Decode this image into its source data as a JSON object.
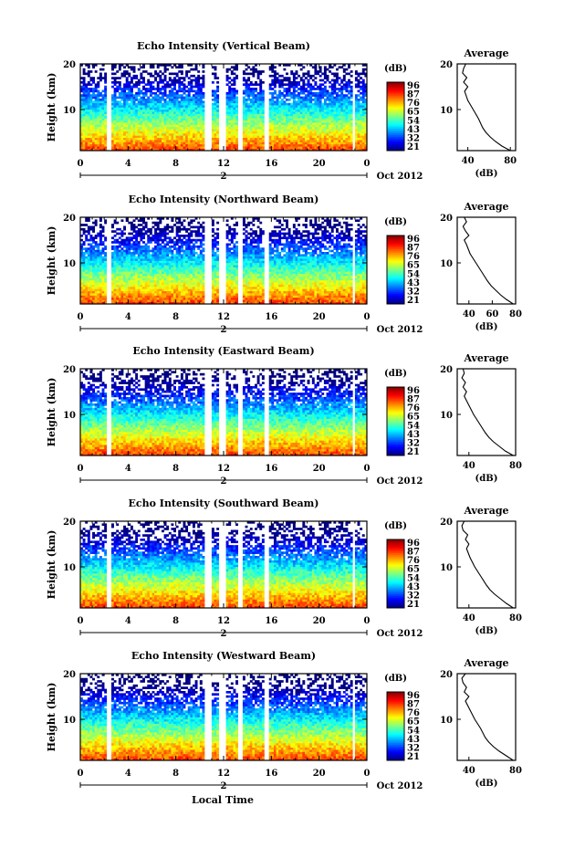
{
  "figure": {
    "xlabel": "Local Time",
    "date_label": "Oct 2012",
    "day_label": "2"
  },
  "chart_data": [
    {
      "type": "heatmap",
      "title": "Echo Intensity (Vertical Beam)",
      "ylabel": "Height (km)",
      "xlabel": "Local Time",
      "x_ticks": [
        "0",
        "4",
        "8",
        "12",
        "16",
        "20",
        "0"
      ],
      "y_ticks": [
        "10",
        "20"
      ],
      "xlim": [
        0,
        24
      ],
      "ylim": [
        1,
        20
      ],
      "colorbar": {
        "title": "(dB)",
        "ticks": [
          "96",
          "87",
          "76",
          "65",
          "54",
          "43",
          "32",
          "21"
        ],
        "range": [
          21,
          96
        ]
      },
      "data_gaps_hours": [
        [
          2.2,
          2.6
        ],
        [
          10.4,
          10.9
        ],
        [
          11.7,
          12.1
        ],
        [
          13.3,
          13.6
        ],
        [
          15.5,
          15.7
        ],
        [
          22.8,
          23.0
        ]
      ],
      "average_profile": {
        "title": "Average",
        "xlabel": "(dB)",
        "x_ticks": [
          "40",
          "80"
        ],
        "y_ticks": [
          "10",
          "20"
        ],
        "xlim": [
          30,
          85
        ],
        "height_km": [
          1,
          2,
          3,
          4,
          5,
          6,
          8,
          10,
          12,
          14,
          15,
          16,
          17,
          18,
          19,
          20
        ],
        "value_db": [
          80,
          72,
          66,
          61,
          57,
          54,
          50,
          45,
          40,
          37,
          40,
          36,
          39,
          35,
          36,
          38
        ]
      }
    },
    {
      "type": "heatmap",
      "title": "Echo Intensity (Northward Beam)",
      "ylabel": "Height (km)",
      "xlabel": "Local Time",
      "x_ticks": [
        "0",
        "4",
        "8",
        "12",
        "16",
        "20",
        "0"
      ],
      "y_ticks": [
        "10",
        "20"
      ],
      "xlim": [
        0,
        24
      ],
      "ylim": [
        1,
        20
      ],
      "colorbar": {
        "title": "(dB)",
        "ticks": [
          "96",
          "87",
          "76",
          "65",
          "54",
          "43",
          "32",
          "21"
        ],
        "range": [
          21,
          96
        ]
      },
      "data_gaps_hours": [
        [
          2.2,
          2.6
        ],
        [
          10.4,
          10.9
        ],
        [
          11.7,
          12.1
        ],
        [
          13.3,
          13.6
        ],
        [
          15.5,
          15.7
        ],
        [
          22.8,
          23.0
        ]
      ],
      "average_profile": {
        "title": "Average",
        "xlabel": "(dB)",
        "x_ticks": [
          "40",
          "60",
          "80"
        ],
        "y_ticks": [
          "10",
          "20"
        ],
        "xlim": [
          30,
          80
        ],
        "height_km": [
          1,
          2,
          3,
          4,
          5,
          6,
          8,
          10,
          12,
          14,
          15,
          16,
          17,
          18,
          19,
          20
        ],
        "value_db": [
          78,
          72,
          67,
          63,
          59,
          56,
          51,
          46,
          41,
          38,
          36,
          40,
          37,
          35,
          38,
          36
        ]
      }
    },
    {
      "type": "heatmap",
      "title": "Echo Intensity (Eastward Beam)",
      "ylabel": "Height (km)",
      "xlabel": "Local Time",
      "x_ticks": [
        "0",
        "4",
        "8",
        "12",
        "16",
        "20",
        "0"
      ],
      "y_ticks": [
        "10",
        "20"
      ],
      "xlim": [
        0,
        24
      ],
      "ylim": [
        1,
        20
      ],
      "colorbar": {
        "title": "(dB)",
        "ticks": [
          "96",
          "87",
          "76",
          "65",
          "54",
          "43",
          "32",
          "21"
        ],
        "range": [
          21,
          96
        ]
      },
      "data_gaps_hours": [
        [
          2.2,
          2.6
        ],
        [
          10.4,
          10.9
        ],
        [
          11.7,
          12.1
        ],
        [
          13.3,
          13.6
        ],
        [
          15.5,
          15.7
        ],
        [
          22.8,
          23.0
        ]
      ],
      "average_profile": {
        "title": "Average",
        "xlabel": "(dB)",
        "x_ticks": [
          "40",
          "80"
        ],
        "y_ticks": [
          "10",
          "20"
        ],
        "xlim": [
          30,
          80
        ],
        "height_km": [
          1,
          2,
          3,
          4,
          5,
          6,
          8,
          10,
          12,
          14,
          15,
          16,
          17,
          18,
          19,
          20
        ],
        "value_db": [
          78,
          71,
          66,
          61,
          57,
          54,
          49,
          44,
          40,
          36,
          38,
          35,
          37,
          34,
          36,
          35
        ]
      }
    },
    {
      "type": "heatmap",
      "title": "Echo Intensity (Southward Beam)",
      "ylabel": "Height (km)",
      "xlabel": "Local Time",
      "x_ticks": [
        "0",
        "4",
        "8",
        "12",
        "16",
        "20",
        "0"
      ],
      "y_ticks": [
        "10",
        "20"
      ],
      "xlim": [
        0,
        24
      ],
      "ylim": [
        1,
        20
      ],
      "colorbar": {
        "title": "(dB)",
        "ticks": [
          "96",
          "87",
          "76",
          "65",
          "54",
          "43",
          "32",
          "21"
        ],
        "range": [
          21,
          96
        ]
      },
      "data_gaps_hours": [
        [
          2.2,
          2.6
        ],
        [
          10.4,
          10.9
        ],
        [
          11.7,
          12.1
        ],
        [
          13.3,
          13.6
        ],
        [
          15.5,
          15.7
        ],
        [
          22.8,
          23.0
        ]
      ],
      "average_profile": {
        "title": "Average",
        "xlabel": "(dB)",
        "x_ticks": [
          "40",
          "80"
        ],
        "y_ticks": [
          "10",
          "20"
        ],
        "xlim": [
          30,
          80
        ],
        "height_km": [
          1,
          2,
          3,
          4,
          5,
          6,
          8,
          10,
          12,
          14,
          15,
          16,
          17,
          18,
          19,
          20
        ],
        "value_db": [
          78,
          72,
          67,
          62,
          58,
          55,
          50,
          45,
          41,
          38,
          40,
          37,
          39,
          35,
          34,
          36
        ]
      }
    },
    {
      "type": "heatmap",
      "title": "Echo Intensity (Westward Beam)",
      "ylabel": "Height (km)",
      "xlabel": "Local Time",
      "x_ticks": [
        "0",
        "4",
        "8",
        "12",
        "16",
        "20",
        "0"
      ],
      "y_ticks": [
        "10",
        "20"
      ],
      "xlim": [
        0,
        24
      ],
      "ylim": [
        1,
        20
      ],
      "colorbar": {
        "title": "(dB)",
        "ticks": [
          "96",
          "87",
          "76",
          "65",
          "54",
          "43",
          "32",
          "21"
        ],
        "range": [
          21,
          96
        ]
      },
      "data_gaps_hours": [
        [
          2.2,
          2.6
        ],
        [
          10.4,
          10.9
        ],
        [
          11.7,
          12.1
        ],
        [
          13.3,
          13.6
        ],
        [
          15.5,
          15.7
        ],
        [
          22.8,
          23.0
        ]
      ],
      "average_profile": {
        "title": "Average",
        "xlabel": "(dB)",
        "x_ticks": [
          "40",
          "80"
        ],
        "y_ticks": [
          "10",
          "20"
        ],
        "xlim": [
          30,
          80
        ],
        "height_km": [
          1,
          2,
          3,
          4,
          5,
          6,
          8,
          10,
          12,
          14,
          15,
          16,
          17,
          18,
          19,
          20
        ],
        "value_db": [
          78,
          72,
          66,
          61,
          57,
          54,
          50,
          45,
          41,
          37,
          40,
          36,
          38,
          35,
          34,
          37
        ]
      }
    }
  ]
}
